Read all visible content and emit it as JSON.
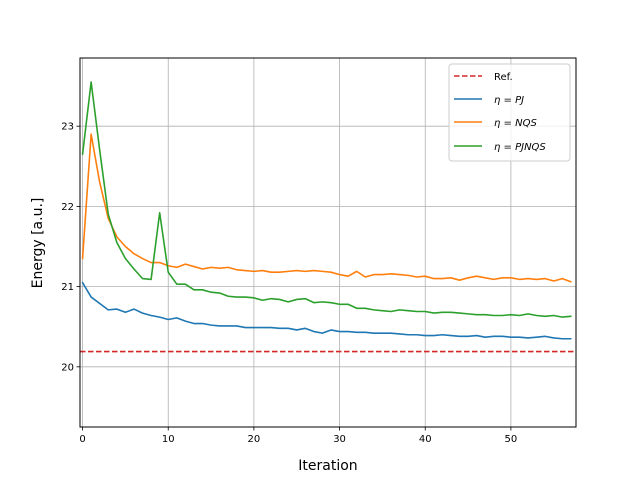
{
  "chart_data": {
    "type": "line",
    "title": "",
    "xlabel": "Iteration",
    "ylabel": "Energy [a.u.]",
    "xlim": [
      -0.3,
      57.6
    ],
    "ylim": [
      19.25,
      23.85
    ],
    "xticks": [
      0,
      10,
      20,
      30,
      40,
      50
    ],
    "yticks": [
      20,
      21,
      22,
      23
    ],
    "xtick_labels": [
      "0",
      "10",
      "20",
      "30",
      "40",
      "50"
    ],
    "ytick_labels": [
      "20",
      "21",
      "22",
      "23"
    ],
    "grid": true,
    "legend_position": "upper right",
    "reference": {
      "name": "Ref.",
      "value": 20.19,
      "color": "#d62728",
      "style": "dashed"
    },
    "series": [
      {
        "name": "η = PJ",
        "legend_eta": "η",
        "legend_rhs": "PJ",
        "color": "#1f77b4",
        "x": [
          0,
          1,
          2,
          3,
          4,
          5,
          6,
          7,
          8,
          9,
          10,
          11,
          12,
          13,
          14,
          15,
          16,
          17,
          18,
          19,
          20,
          21,
          22,
          23,
          24,
          25,
          26,
          27,
          28,
          29,
          30,
          31,
          32,
          33,
          34,
          35,
          36,
          37,
          38,
          39,
          40,
          41,
          42,
          43,
          44,
          45,
          46,
          47,
          48,
          49,
          50,
          51,
          52,
          53,
          54,
          55,
          56,
          57
        ],
        "values": [
          21.05,
          20.87,
          20.79,
          20.71,
          20.72,
          20.68,
          20.72,
          20.67,
          20.64,
          20.62,
          20.59,
          20.61,
          20.57,
          20.54,
          20.54,
          20.52,
          20.51,
          20.51,
          20.51,
          20.49,
          20.49,
          20.49,
          20.49,
          20.48,
          20.48,
          20.46,
          20.48,
          20.44,
          20.42,
          20.46,
          20.44,
          20.44,
          20.43,
          20.43,
          20.42,
          20.42,
          20.42,
          20.41,
          20.4,
          20.4,
          20.39,
          20.39,
          20.4,
          20.39,
          20.38,
          20.38,
          20.39,
          20.37,
          20.38,
          20.38,
          20.37,
          20.37,
          20.36,
          20.37,
          20.38,
          20.36,
          20.35,
          20.35
        ]
      },
      {
        "name": "η = NQS",
        "legend_eta": "η",
        "legend_rhs": "NQS",
        "color": "#ff7f0e",
        "x": [
          0,
          1,
          2,
          3,
          4,
          5,
          6,
          7,
          8,
          9,
          10,
          11,
          12,
          13,
          14,
          15,
          16,
          17,
          18,
          19,
          20,
          21,
          22,
          23,
          24,
          25,
          26,
          27,
          28,
          29,
          30,
          31,
          32,
          33,
          34,
          35,
          36,
          37,
          38,
          39,
          40,
          41,
          42,
          43,
          44,
          45,
          46,
          47,
          48,
          49,
          50,
          51,
          52,
          53,
          54,
          55,
          56,
          57
        ],
        "values": [
          21.35,
          22.9,
          22.3,
          21.85,
          21.62,
          21.5,
          21.41,
          21.35,
          21.3,
          21.3,
          21.26,
          21.24,
          21.28,
          21.25,
          21.22,
          21.24,
          21.23,
          21.24,
          21.21,
          21.2,
          21.19,
          21.2,
          21.18,
          21.18,
          21.19,
          21.2,
          21.19,
          21.2,
          21.19,
          21.18,
          21.15,
          21.13,
          21.19,
          21.12,
          21.15,
          21.15,
          21.16,
          21.15,
          21.14,
          21.12,
          21.13,
          21.1,
          21.1,
          21.11,
          21.08,
          21.11,
          21.13,
          21.11,
          21.09,
          21.11,
          21.11,
          21.09,
          21.1,
          21.09,
          21.1,
          21.07,
          21.1,
          21.06
        ]
      },
      {
        "name": "η = PJNQS",
        "legend_eta": "η",
        "legend_rhs": "PJNQS",
        "color": "#2ca02c",
        "x": [
          0,
          1,
          2,
          3,
          4,
          5,
          6,
          7,
          8,
          9,
          10,
          11,
          12,
          13,
          14,
          15,
          16,
          17,
          18,
          19,
          20,
          21,
          22,
          23,
          24,
          25,
          26,
          27,
          28,
          29,
          30,
          31,
          32,
          33,
          34,
          35,
          36,
          37,
          38,
          39,
          40,
          41,
          42,
          43,
          44,
          45,
          46,
          47,
          48,
          49,
          50,
          51,
          52,
          53,
          54,
          55,
          56,
          57
        ],
        "values": [
          22.65,
          23.55,
          22.7,
          21.9,
          21.55,
          21.35,
          21.22,
          21.1,
          21.09,
          21.92,
          21.18,
          21.03,
          21.03,
          20.96,
          20.96,
          20.93,
          20.92,
          20.88,
          20.87,
          20.87,
          20.86,
          20.83,
          20.85,
          20.84,
          20.81,
          20.84,
          20.85,
          20.8,
          20.81,
          20.8,
          20.78,
          20.78,
          20.73,
          20.73,
          20.71,
          20.7,
          20.69,
          20.71,
          20.7,
          20.69,
          20.69,
          20.67,
          20.68,
          20.68,
          20.67,
          20.66,
          20.65,
          20.65,
          20.64,
          20.64,
          20.65,
          20.64,
          20.66,
          20.64,
          20.63,
          20.64,
          20.62,
          20.63
        ]
      }
    ]
  }
}
